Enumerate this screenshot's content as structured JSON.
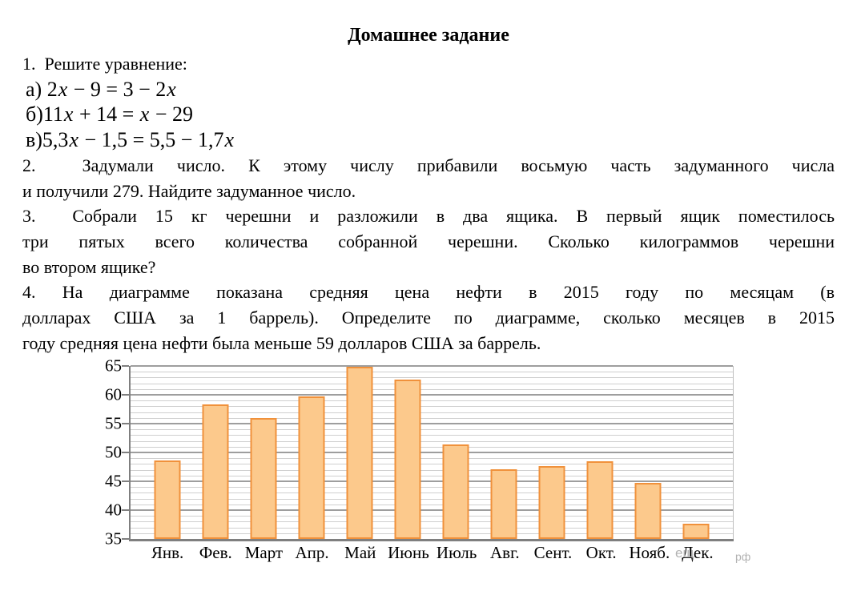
{
  "document": {
    "title": "Домашнее задание",
    "task1": {
      "heading": "1.  Решите уравнение:",
      "eq_a": "а) 2x − 9 = 3 − 2x",
      "eq_b": "б)11x + 14 = x − 29",
      "eq_v": "в)5,3x − 1,5 = 5,5 − 1,7x"
    },
    "task2": {
      "line1": "2.  Задумали число. К этому числу прибавили восьмую часть задуманного числа",
      "line2": "и получили 279. Найдите задуманное число."
    },
    "task3": {
      "line1": "3.  Собрали 15 кг черешни и разложили в два ящика. В первый ящик поместилось",
      "line2": "три пятых всего количества собранной черешни. Сколько килограммов черешни",
      "line3": "во втором ящике?"
    },
    "task4": {
      "line1": "4. На диаграмме показана средняя цена нефти в 2015 году по месяцам (в",
      "line2": "долларах США за 1 баррель). Определите по диаграмме, сколько месяцев в 2015",
      "line3": "году средняя цена нефти была меньше 59 долларов США за баррель."
    }
  },
  "chart_data": {
    "type": "bar",
    "title": "",
    "xlabel": "",
    "ylabel": "",
    "categories": [
      "Янв.",
      "Фев.",
      "Март",
      "Апр.",
      "Май",
      "Июнь",
      "Июль",
      "Авг.",
      "Сент.",
      "Окт.",
      "Нояб.",
      "Дек."
    ],
    "values": [
      48.3,
      58.0,
      55.7,
      59.4,
      64.6,
      62.4,
      51.1,
      46.8,
      47.4,
      48.2,
      44.4,
      37.4
    ],
    "ylim": [
      35,
      65
    ],
    "ytick_step": 5,
    "grid_minor_step": 1,
    "grid": true,
    "legend": false,
    "colors": {
      "bar_fill": "#FCC98C",
      "bar_border": "#F0913B",
      "grid_minor": "#CFCFCF",
      "grid_major": "#9E9E9E",
      "axis": "#7F7F7F"
    }
  },
  "watermark": {
    "fragment1": "ещ",
    "fragment2": "рф"
  }
}
